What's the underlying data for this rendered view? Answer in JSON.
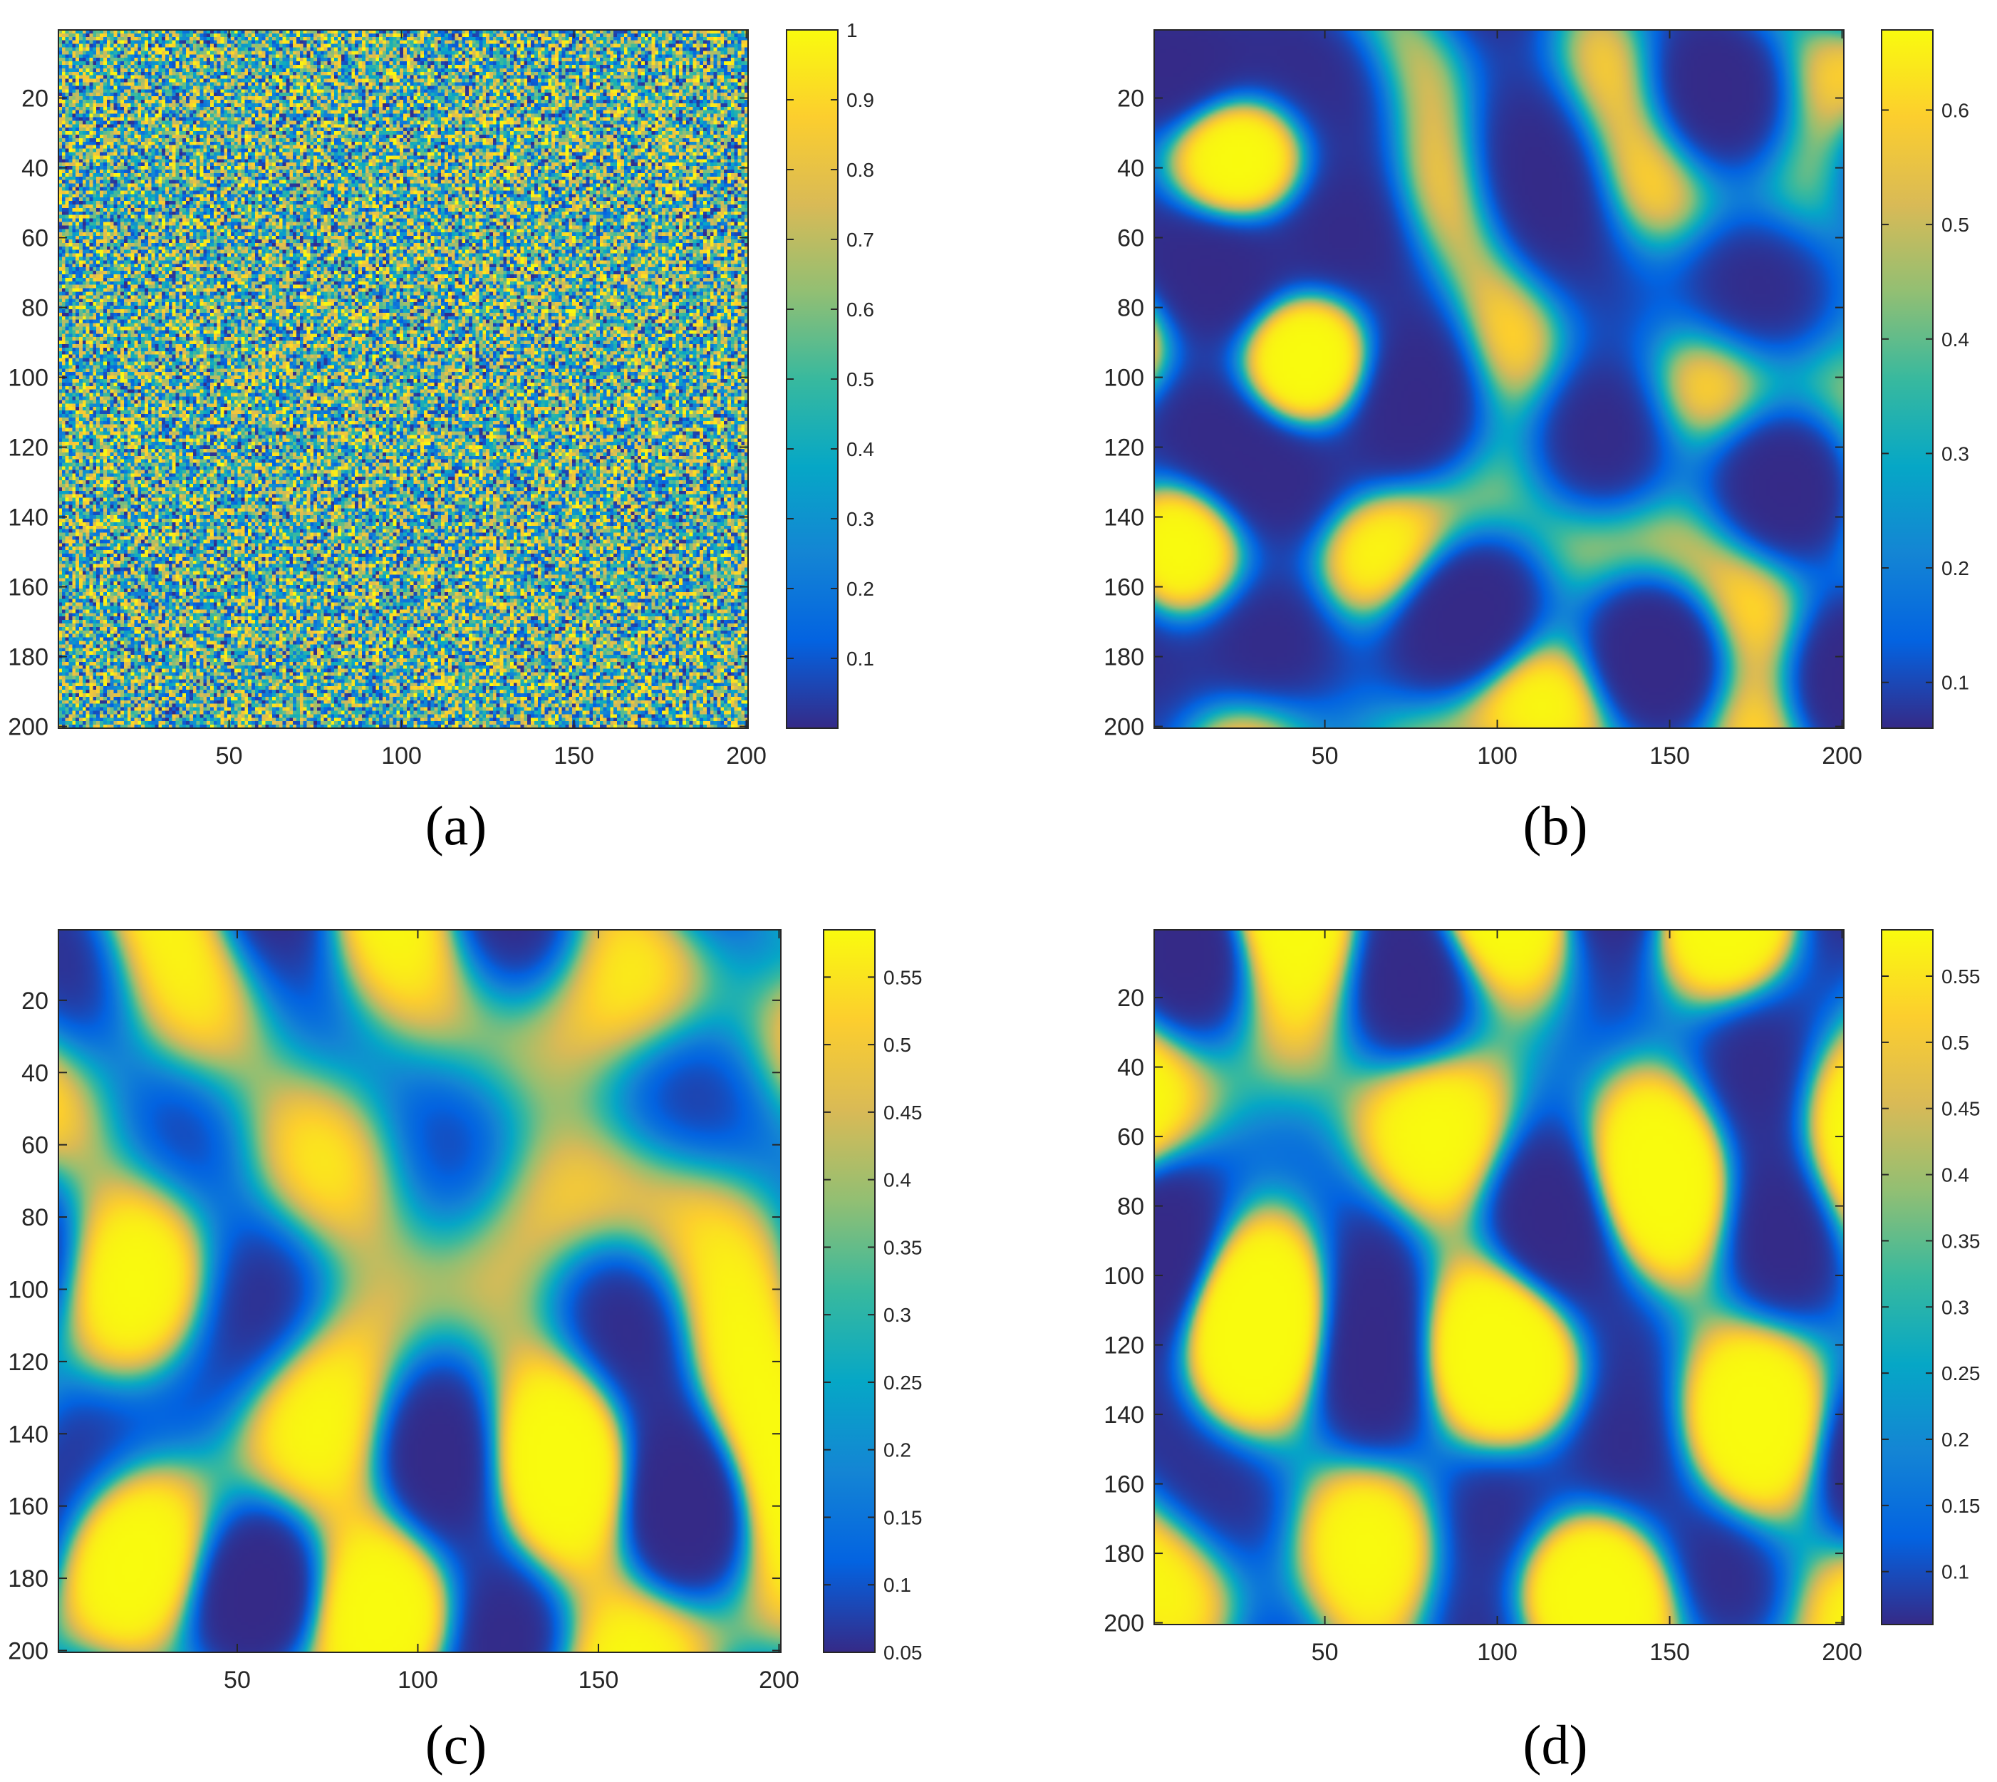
{
  "colors": {
    "colormap": "parula",
    "parula_stops": [
      "#352a87",
      "#0363e1",
      "#1485d4",
      "#06a7c6",
      "#38b99e",
      "#92bf73",
      "#d9ba56",
      "#fcce2e",
      "#f9fb0e"
    ],
    "axis": "#262626"
  },
  "chart_data": [
    {
      "panel_label": "(a)",
      "type": "heatmap",
      "title": "",
      "xlabel": "",
      "ylabel": "",
      "grid": 200,
      "pattern": "random-noise",
      "x_ticks": [
        "50",
        "100",
        "150",
        "200"
      ],
      "y_ticks": [
        "20",
        "40",
        "60",
        "80",
        "100",
        "120",
        "140",
        "160",
        "180",
        "200"
      ],
      "colorbar": {
        "range": [
          0,
          1
        ],
        "ticks": [
          "0.1",
          "0.2",
          "0.3",
          "0.4",
          "0.5",
          "0.6",
          "0.7",
          "0.8",
          "0.9",
          "1"
        ]
      }
    },
    {
      "panel_label": "(b)",
      "type": "heatmap",
      "title": "",
      "xlabel": "",
      "ylabel": "",
      "grid": 200,
      "pattern": "spots",
      "x_ticks": [
        "50",
        "100",
        "150",
        "200"
      ],
      "y_ticks": [
        "20",
        "40",
        "60",
        "80",
        "100",
        "120",
        "140",
        "160",
        "180",
        "200"
      ],
      "colorbar": {
        "range": [
          0.06,
          0.67
        ],
        "ticks": [
          "0.1",
          "0.2",
          "0.3",
          "0.4",
          "0.5",
          "0.6"
        ]
      }
    },
    {
      "panel_label": "(c)",
      "type": "heatmap",
      "title": "",
      "xlabel": "",
      "ylabel": "",
      "grid": 200,
      "pattern": "labyrinth-stripes",
      "x_ticks": [
        "50",
        "100",
        "150",
        "200"
      ],
      "y_ticks": [
        "20",
        "40",
        "60",
        "80",
        "100",
        "120",
        "140",
        "160",
        "180",
        "200"
      ],
      "colorbar": {
        "range": [
          0.05,
          0.585
        ],
        "ticks": [
          "0.05",
          "0.1",
          "0.15",
          "0.2",
          "0.25",
          "0.3",
          "0.35",
          "0.4",
          "0.45",
          "0.5",
          "0.55"
        ]
      }
    },
    {
      "panel_label": "(d)",
      "type": "heatmap",
      "title": "",
      "xlabel": "",
      "ylabel": "",
      "grid": 200,
      "pattern": "labyrinth-stripes",
      "x_ticks": [
        "50",
        "100",
        "150",
        "200"
      ],
      "y_ticks": [
        "20",
        "40",
        "60",
        "80",
        "100",
        "120",
        "140",
        "160",
        "180",
        "200"
      ],
      "colorbar": {
        "range": [
          0.06,
          0.585
        ],
        "ticks": [
          "0.1",
          "0.15",
          "0.2",
          "0.25",
          "0.3",
          "0.35",
          "0.4",
          "0.45",
          "0.5",
          "0.55"
        ]
      }
    }
  ]
}
